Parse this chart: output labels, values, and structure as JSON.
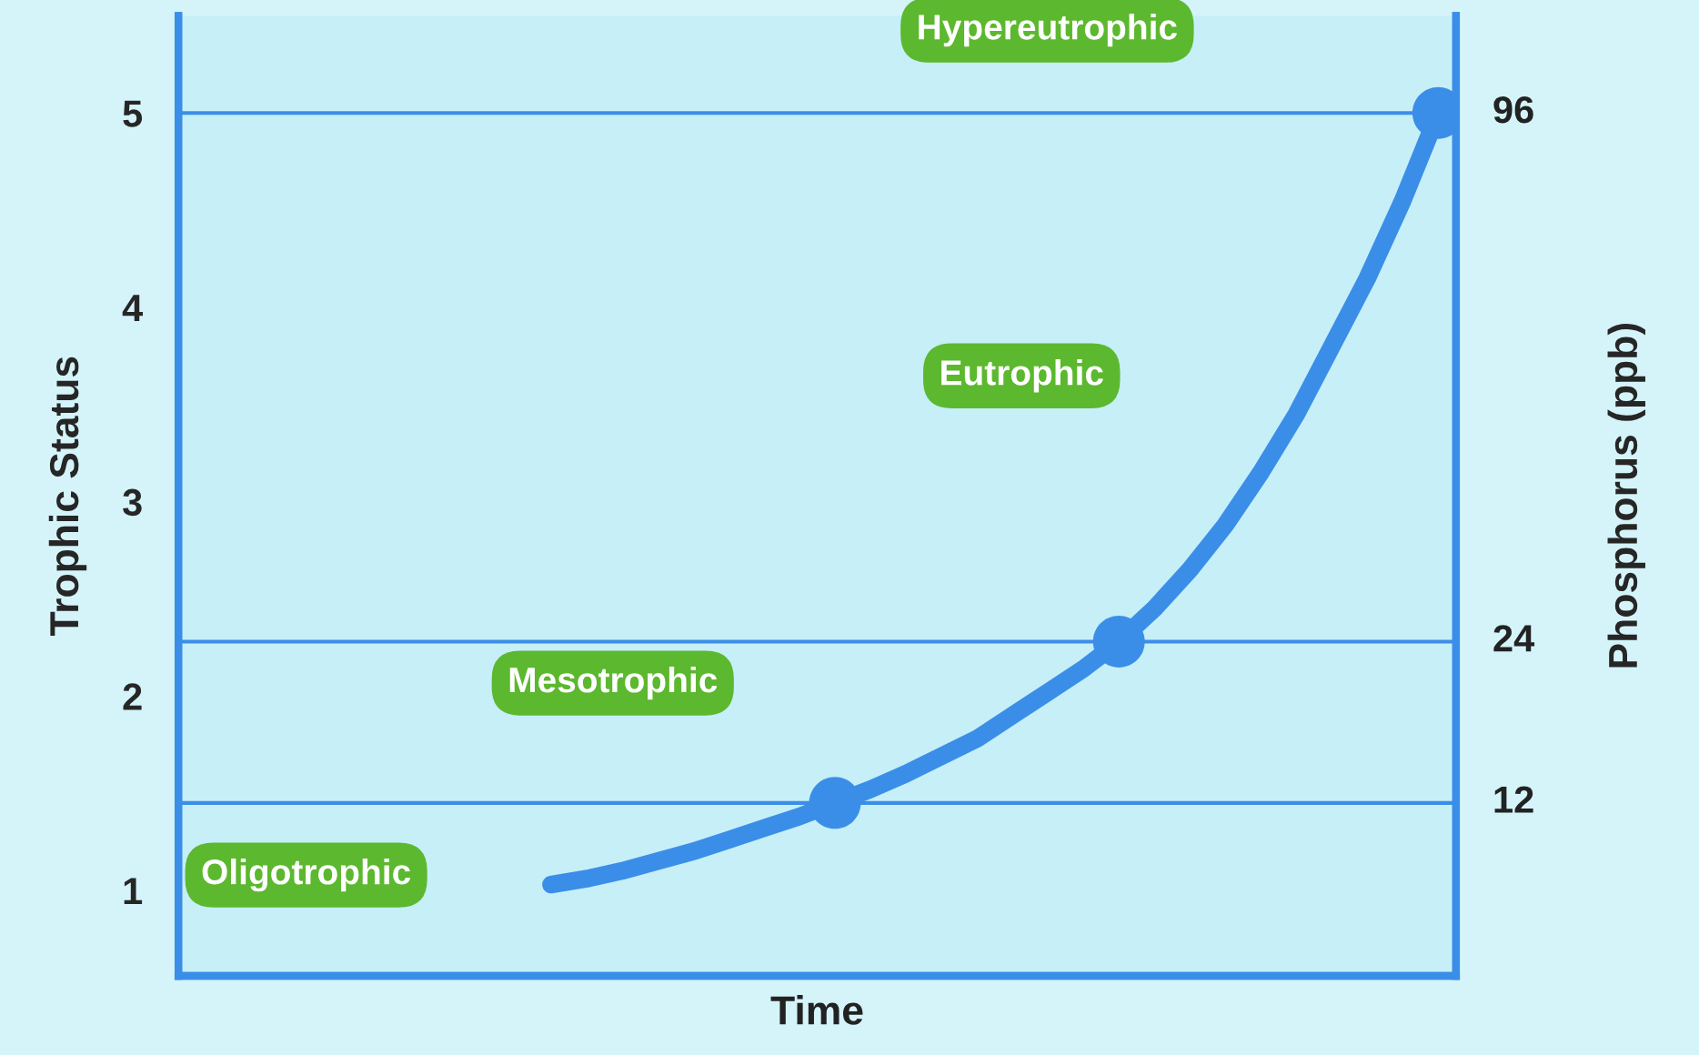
{
  "chart_data": {
    "type": "line",
    "xlabel": "Time",
    "ylabel": "Trophic Status",
    "y2label": "Phosphorus (ppb)",
    "categories": [
      null,
      null,
      null,
      null,
      null,
      null,
      null,
      null,
      null,
      null,
      null,
      null,
      null,
      null,
      null,
      null,
      null,
      null,
      null,
      null,
      null,
      null,
      null,
      null,
      null,
      null,
      null,
      null,
      null,
      null,
      null,
      null,
      null,
      null,
      null,
      null
    ],
    "series": [
      {
        "color": "#3b8ee8",
        "marker": "none",
        "values": [
          null,
          null,
          null,
          null,
          null,
          null,
          null,
          null,
          null,
          null,
          1.03,
          1.06,
          1.1,
          1.15,
          1.2,
          1.26,
          1.32,
          1.38,
          1.45,
          1.52,
          1.6,
          1.69,
          1.78,
          1.9,
          2.02,
          2.14,
          2.28,
          2.45,
          2.65,
          2.88,
          3.15,
          3.45,
          3.8,
          4.15,
          4.55,
          5.0
        ]
      },
      {
        "type": "scatter",
        "color": "#3b8ee8",
        "marker": "circle",
        "values": [
          null,
          null,
          null,
          null,
          null,
          null,
          null,
          null,
          null,
          null,
          null,
          null,
          null,
          null,
          null,
          null,
          null,
          null,
          1.45,
          null,
          null,
          null,
          null,
          null,
          null,
          null,
          2.28,
          null,
          null,
          null,
          null,
          null,
          null,
          null,
          null,
          5.0
        ]
      }
    ],
    "ylim": [
      0.56,
      5.5
    ],
    "yticks": [
      1,
      2,
      3,
      4,
      5
    ],
    "ref_lines": [
      {
        "axis": "y",
        "value": 1.45,
        "color": "#3b8ee8"
      },
      {
        "axis": "y",
        "value": 2.28,
        "color": "#3b8ee8"
      },
      {
        "axis": "y",
        "value": 5,
        "color": "#3b8ee8"
      }
    ],
    "tick_labels": "y",
    "annotations": [
      "Oligotrophic",
      "Mesotrophic",
      "Eutrophic",
      "Hypereutrophic",
      "12",
      "24",
      "96"
    ]
  }
}
